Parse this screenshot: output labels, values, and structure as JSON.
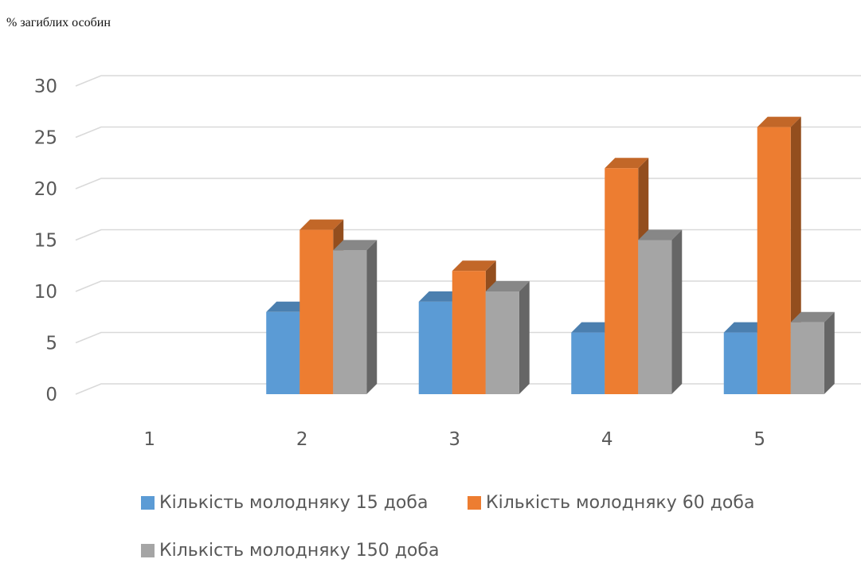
{
  "chart_data": {
    "type": "bar",
    "ylabel": "% загиблих особин",
    "categories": [
      "1",
      "2",
      "3",
      "4",
      "5"
    ],
    "series": [
      {
        "name": "Кількість молодняку 15 доба",
        "values": [
          0,
          8,
          9,
          6,
          6
        ]
      },
      {
        "name": "Кількість молодняку 60 доба",
        "values": [
          0,
          16,
          12,
          22,
          26
        ]
      },
      {
        "name": "Кількість молодняку 150 доба",
        "values": [
          0,
          14,
          10,
          15,
          7
        ]
      }
    ],
    "ylim": [
      0,
      30
    ],
    "yticks": [
      "0",
      "5",
      "10",
      "15",
      "20",
      "25",
      "30"
    ],
    "grid": true,
    "legend_position": "bottom",
    "style": "3d-clustered-column"
  },
  "colors": {
    "series": [
      "#5b9bd5",
      "#ed7d31",
      "#a5a5a5"
    ],
    "grid": "#d9d9d9",
    "text": "#595959"
  }
}
